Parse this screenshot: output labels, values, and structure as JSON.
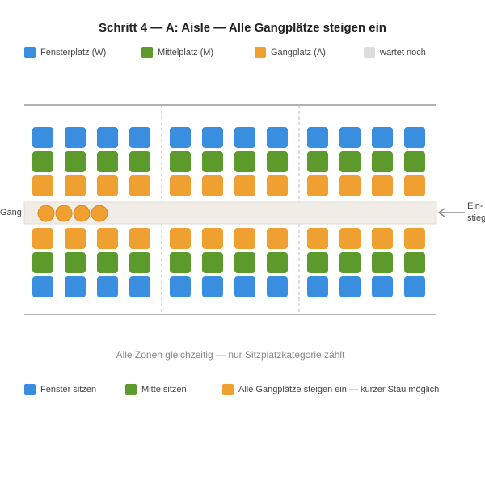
{
  "title": "Schritt 4 — A: Aisle — Alle Gangplätze steigen ein",
  "legend": [
    {
      "label": "Fensterplatz (W)",
      "color": "#3a8ee0"
    },
    {
      "label": "Mittelplatz (M)",
      "color": "#5b9a2b"
    },
    {
      "label": "Gangplatz (A)",
      "color": "#f0a030"
    },
    {
      "label": "wartet noch",
      "color": "#dddddd"
    }
  ],
  "aisle_label": "Gang",
  "entry_label": [
    "Ein-",
    "stieg"
  ],
  "caption": "Alle Zonen gleichzeitig — nur Sitzplatzkategorie zählt",
  "status": [
    {
      "label": "Fenster sitzen",
      "color": "#3a8ee0"
    },
    {
      "label": "Mitte sitzen",
      "color": "#5b9a2b"
    },
    {
      "label": "Alle Gangplätze steigen ein — kurzer Stau möglich",
      "color": "#f0a030"
    }
  ]
}
